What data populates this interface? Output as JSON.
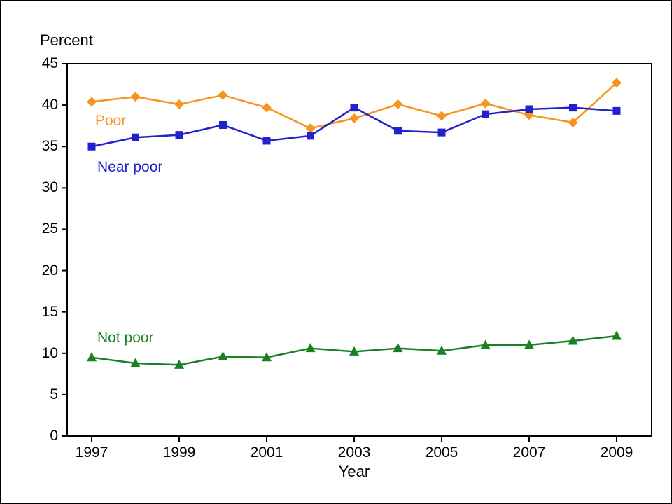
{
  "labels": {
    "ylabel": "Percent",
    "xlabel": "Year"
  },
  "chart_data": {
    "type": "line",
    "title": "",
    "ylabel": "Percent",
    "xlabel": "Year",
    "ylim": [
      0,
      45
    ],
    "ytick_step": 5,
    "ytick_labels": [
      0,
      5,
      10,
      15,
      20,
      25,
      30,
      35,
      40,
      45
    ],
    "x": [
      1997,
      1998,
      1999,
      2000,
      2001,
      2002,
      2003,
      2004,
      2005,
      2006,
      2007,
      2008,
      2009
    ],
    "x_tick_labels": [
      1997,
      1999,
      2001,
      2003,
      2005,
      2007,
      2009
    ],
    "grid": "off",
    "legend": "inline-labels",
    "series": [
      {
        "name": "Poor",
        "color": "#F7941E",
        "marker": "diamond",
        "values": [
          40.4,
          41.0,
          40.1,
          41.2,
          39.7,
          37.2,
          38.4,
          40.1,
          38.7,
          40.2,
          38.8,
          37.9,
          42.7
        ]
      },
      {
        "name": "Near poor",
        "color": "#2222CC",
        "marker": "square",
        "values": [
          35.0,
          36.1,
          36.4,
          37.6,
          35.7,
          36.3,
          39.7,
          36.9,
          36.7,
          38.9,
          39.5,
          39.7,
          39.3
        ]
      },
      {
        "name": "Not poor",
        "color": "#1A8022",
        "marker": "triangle",
        "values": [
          9.5,
          8.8,
          8.6,
          9.6,
          9.5,
          10.6,
          10.2,
          10.6,
          10.3,
          11.0,
          11.0,
          11.5,
          12.1
        ]
      }
    ]
  }
}
